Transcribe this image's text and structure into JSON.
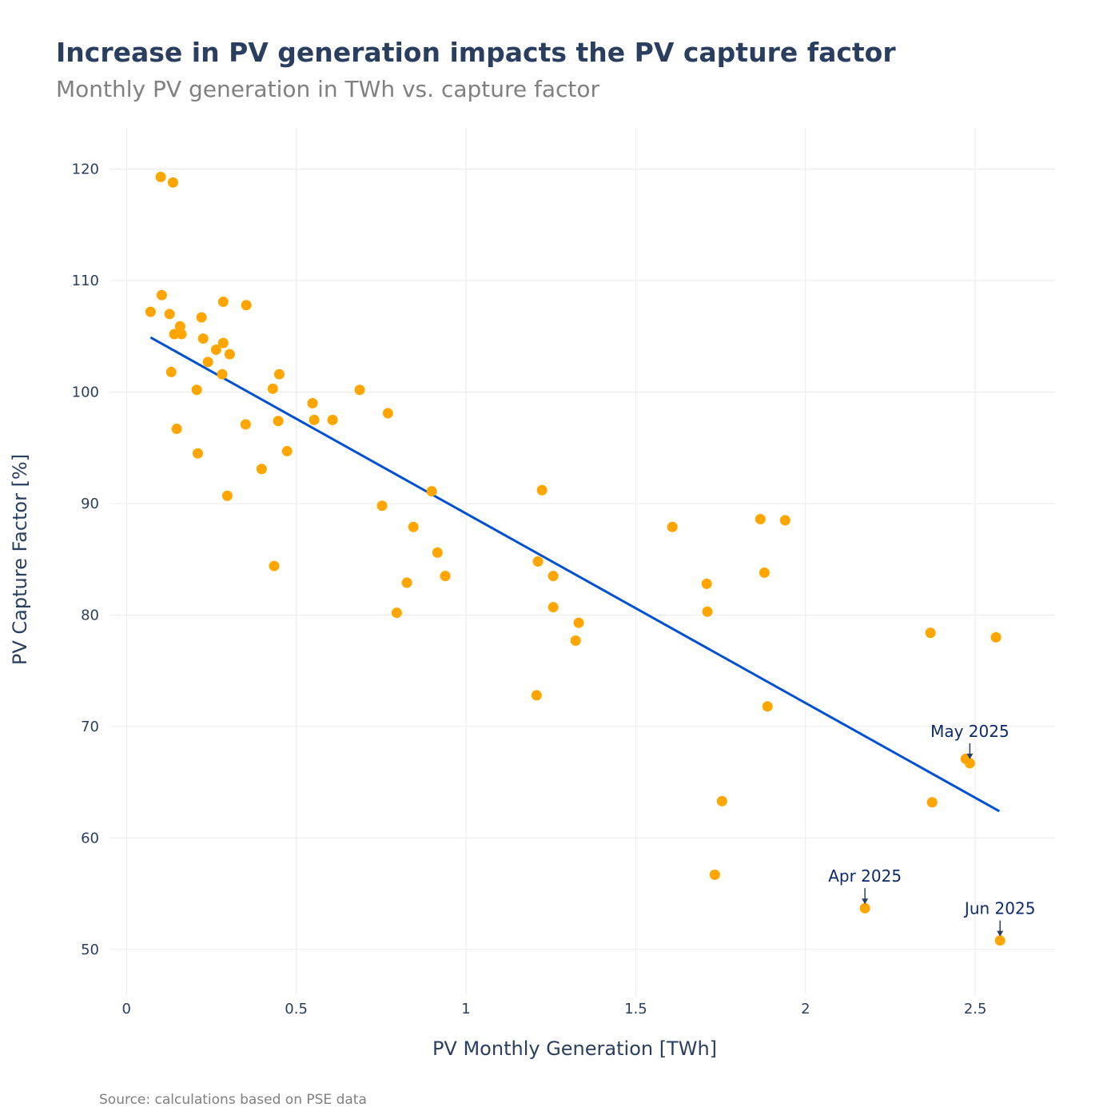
{
  "chart_data": {
    "type": "scatter",
    "title": "Increase in PV generation impacts the PV capture factor",
    "subtitle": "Monthly PV generation in TWh vs. capture factor",
    "xlabel": "PV Monthly Generation [TWh]",
    "ylabel": "PV Capture Factor [%]",
    "source": "Source: calculations based on PSE data",
    "xlim": [
      -0.05,
      2.735
    ],
    "ylim": [
      45.9,
      123.7
    ],
    "xticks": [
      0,
      0.5,
      1,
      1.5,
      2,
      2.5
    ],
    "xtick_labels": [
      "0",
      "0.5",
      "1",
      "1.5",
      "2",
      "2.5"
    ],
    "yticks": [
      50,
      60,
      70,
      80,
      90,
      100,
      110,
      120
    ],
    "ytick_labels": [
      "50",
      "60",
      "70",
      "80",
      "90",
      "100",
      "110",
      "120"
    ],
    "grid": true,
    "colors": {
      "points": "#FFA500",
      "trend": "#0050D0",
      "title": "#2a3f5f",
      "annotation": "#0d2a6b"
    },
    "points": [
      [
        0.071,
        107.2
      ],
      [
        0.101,
        119.3
      ],
      [
        0.137,
        118.8
      ],
      [
        0.104,
        108.7
      ],
      [
        0.127,
        107.0
      ],
      [
        0.158,
        105.9
      ],
      [
        0.141,
        105.2
      ],
      [
        0.162,
        105.2
      ],
      [
        0.285,
        108.1
      ],
      [
        0.353,
        107.8
      ],
      [
        0.221,
        106.7
      ],
      [
        0.226,
        104.8
      ],
      [
        0.285,
        104.4
      ],
      [
        0.264,
        103.8
      ],
      [
        0.304,
        103.4
      ],
      [
        0.24,
        102.7
      ],
      [
        0.132,
        101.8
      ],
      [
        0.282,
        101.6
      ],
      [
        0.207,
        100.2
      ],
      [
        0.431,
        100.3
      ],
      [
        0.45,
        101.6
      ],
      [
        0.687,
        100.2
      ],
      [
        0.548,
        99.0
      ],
      [
        0.77,
        98.1
      ],
      [
        0.447,
        97.4
      ],
      [
        0.553,
        97.5
      ],
      [
        0.607,
        97.5
      ],
      [
        0.351,
        97.1
      ],
      [
        0.148,
        96.7
      ],
      [
        0.21,
        94.5
      ],
      [
        0.473,
        94.7
      ],
      [
        0.398,
        93.1
      ],
      [
        0.297,
        90.7
      ],
      [
        0.753,
        89.8
      ],
      [
        0.899,
        91.1
      ],
      [
        1.224,
        91.2
      ],
      [
        0.845,
        87.9
      ],
      [
        0.916,
        85.6
      ],
      [
        1.212,
        84.8
      ],
      [
        0.435,
        84.4
      ],
      [
        0.939,
        83.5
      ],
      [
        1.257,
        83.5
      ],
      [
        0.826,
        82.9
      ],
      [
        1.257,
        80.7
      ],
      [
        0.796,
        80.2
      ],
      [
        1.332,
        79.3
      ],
      [
        1.323,
        77.7
      ],
      [
        1.208,
        72.8
      ],
      [
        1.608,
        87.9
      ],
      [
        1.867,
        88.6
      ],
      [
        1.94,
        88.5
      ],
      [
        1.709,
        82.8
      ],
      [
        1.879,
        83.8
      ],
      [
        1.711,
        80.3
      ],
      [
        1.888,
        71.8
      ],
      [
        2.368,
        78.4
      ],
      [
        2.561,
        78.0
      ],
      [
        2.472,
        67.1
      ],
      [
        2.484,
        66.7
      ],
      [
        2.373,
        63.2
      ],
      [
        1.754,
        63.3
      ],
      [
        1.733,
        56.7
      ],
      [
        2.175,
        53.7
      ],
      [
        2.573,
        50.8
      ]
    ],
    "trendline": [
      [
        0.071,
        104.9
      ],
      [
        2.571,
        62.4
      ]
    ],
    "annotations": [
      {
        "text": "May 2025",
        "x": 2.484,
        "y": 66.7
      },
      {
        "text": "Apr 2025",
        "x": 2.175,
        "y": 53.7
      },
      {
        "text": "Jun 2025",
        "x": 2.573,
        "y": 50.8
      }
    ]
  }
}
